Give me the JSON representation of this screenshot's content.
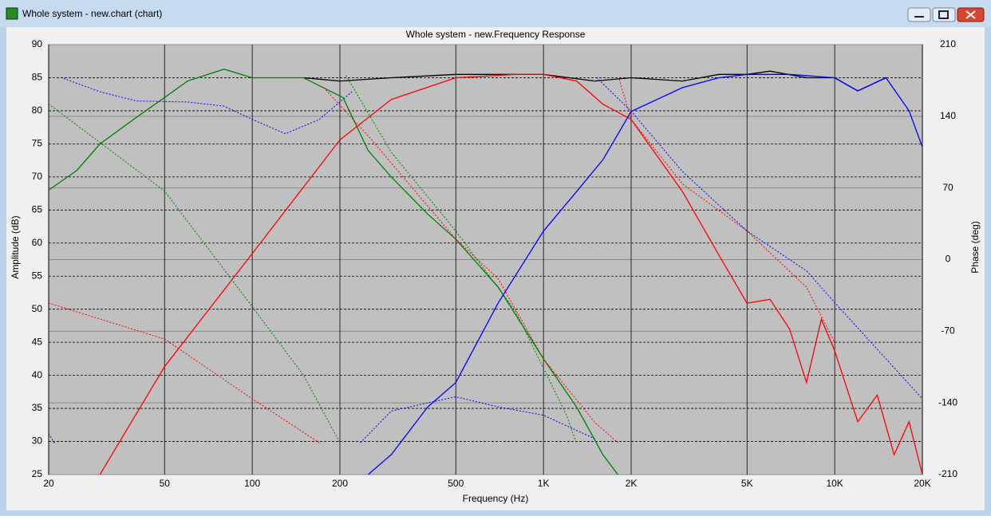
{
  "window": {
    "title": "Whole system - new.chart (chart)"
  },
  "chart_data": {
    "type": "line",
    "title": "Whole system - new.Frequency Response",
    "x_label": "Frequency (Hz)",
    "y_label": "Amplitude (dB)",
    "y2_label": "Phase (deg)",
    "xscale": "log",
    "grid": true,
    "xlim": [
      20,
      20000
    ],
    "xticks": [
      20,
      50,
      100,
      200,
      500,
      {
        "value": 1000,
        "label": "1K"
      },
      {
        "value": 2000,
        "label": "2K"
      },
      {
        "value": 5000,
        "label": "5K"
      },
      {
        "value": 10000,
        "label": "10K"
      },
      {
        "value": 20000,
        "label": "20K"
      }
    ],
    "ylim": [
      25,
      90
    ],
    "yticks": [
      25,
      30,
      35,
      40,
      45,
      50,
      55,
      60,
      65,
      70,
      75,
      80,
      85,
      90
    ],
    "y2lim": [
      -210,
      210
    ],
    "y2ticks": [
      -210,
      -140,
      -70,
      0,
      70,
      140,
      210
    ],
    "series": [
      {
        "color": "#000000",
        "dash": false,
        "x": [
          150,
          200,
          300,
          500,
          800,
          1000,
          1500,
          2000,
          3000,
          4000,
          5000,
          6000,
          8000,
          10000,
          12000,
          15000
        ],
        "values": [
          85,
          84.5,
          85,
          85.5,
          85.5,
          85.5,
          84.5,
          85,
          84.5,
          85.5,
          85.5,
          86,
          85,
          85,
          83,
          85
        ]
      },
      {
        "color": "#008000",
        "dash": false,
        "x": [
          20,
          25,
          30,
          40,
          50,
          60,
          80,
          100,
          150,
          205,
          250,
          300,
          400,
          500,
          700,
          1000,
          1300,
          1600,
          1800
        ],
        "values": [
          68,
          71,
          75,
          79,
          82,
          84.5,
          86.3,
          85,
          85,
          82,
          74,
          70,
          64.4,
          60.6,
          53.3,
          42.5,
          35.2,
          28,
          25
        ]
      },
      {
        "color": "#ff0000",
        "dash": false,
        "x": [
          30,
          50,
          100,
          200,
          300,
          500,
          800,
          1000,
          1300,
          1600,
          2000,
          3000,
          4000,
          5000,
          6000,
          7000,
          8000,
          9000,
          10000,
          12000,
          14000,
          16000,
          18000,
          20000
        ],
        "values": [
          25,
          41.3,
          58.4,
          75.6,
          81.7,
          85,
          85.5,
          85.5,
          84.5,
          81,
          78.7,
          67.8,
          58.2,
          50.9,
          51.5,
          47,
          38.9,
          48.5,
          43.7,
          33,
          37,
          28,
          33,
          25
        ]
      },
      {
        "color": "#0000ff",
        "dash": false,
        "x": [
          250,
          300,
          400,
          500,
          700,
          1000,
          1300,
          1600,
          2000,
          3000,
          4000,
          5000,
          7000,
          10000,
          12000,
          15000,
          18000,
          20000
        ],
        "values": [
          25,
          28,
          35.2,
          38.9,
          51,
          61.8,
          67.8,
          72.6,
          79.9,
          83.5,
          85,
          85.5,
          85.5,
          85,
          83,
          85,
          80,
          74.5
        ]
      },
      {
        "color": "#008000",
        "dash": true,
        "axis": "y2",
        "x": [
          20,
          50,
          100,
          150,
          200,
          205,
          210,
          300,
          500,
          800,
          1200,
          1300
        ],
        "values": [
          152,
          67,
          -46,
          -113,
          -179,
          null,
          180,
          105,
          28,
          -50,
          -152,
          -180
        ]
      },
      {
        "color": "#ff0000",
        "dash": true,
        "axis": "y2",
        "x": [
          20,
          50,
          100,
          170,
          175,
          176,
          250,
          500,
          700,
          1000,
          1500,
          1800,
          1810,
          1820,
          2000,
          3000,
          5000,
          8000,
          10000
        ],
        "values": [
          -42.5,
          -77.6,
          -136,
          -179,
          null,
          168,
          121,
          20,
          -19,
          -97,
          -159,
          -179,
          null,
          176,
          137,
          74,
          28,
          -27,
          -81
        ]
      },
      {
        "color": "#0000ff",
        "dash": true,
        "axis": "y2",
        "x": [
          20,
          21,
          21.5,
          22,
          30,
          40,
          60,
          80,
          100,
          130,
          170,
          220,
          230,
          235,
          300,
          400,
          500,
          700,
          1000,
          1500,
          1510,
          1520,
          2000,
          3000,
          5000,
          8000,
          10000,
          15000,
          20000
        ],
        "values": [
          -170,
          -180,
          null,
          178,
          164,
          155,
          154,
          150,
          137,
          123,
          137,
          164,
          null,
          -179,
          -148,
          -140,
          -134,
          -144,
          -152,
          -175,
          null,
          178,
          145,
          86,
          28,
          -11,
          -42,
          -97,
          -136
        ]
      }
    ]
  }
}
